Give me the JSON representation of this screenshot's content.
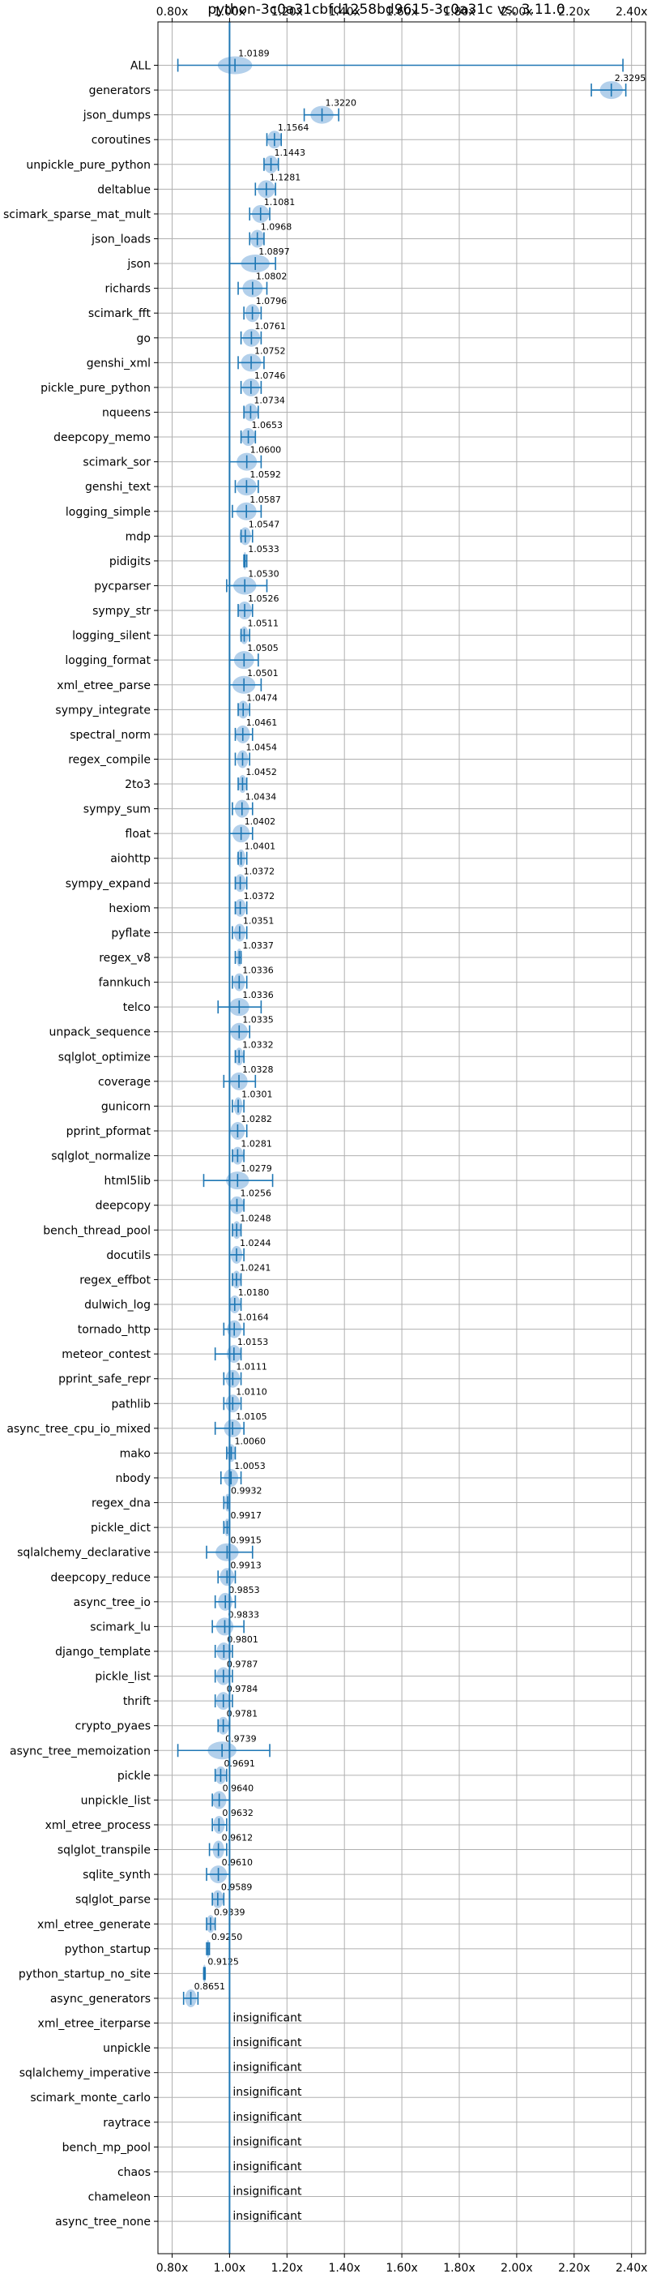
{
  "chart_data": {
    "type": "violin",
    "title": "python-3c0a31cbfd1258bd9615-3c0a31c vs. 3.11.0",
    "xlim": [
      0.75,
      2.42
    ],
    "x_ticks": [
      {
        "value": 0.8,
        "label": "0.80x"
      },
      {
        "value": 1.0,
        "label": "1.00x"
      },
      {
        "value": 1.2,
        "label": "1.20x"
      },
      {
        "value": 1.4,
        "label": "1.40x"
      },
      {
        "value": 1.6,
        "label": "1.60x"
      },
      {
        "value": 1.8,
        "label": "1.80x"
      },
      {
        "value": 2.0,
        "label": "2.00x"
      },
      {
        "value": 2.2,
        "label": "2.20x"
      },
      {
        "value": 2.4,
        "label": "2.40x"
      }
    ],
    "reference_line": 1.0,
    "grid": true,
    "colors": {
      "accent": "#1f77b4",
      "violin": "#a6c8e8",
      "grid": "#b0b0b0"
    },
    "insignificant_text": "insignificant",
    "benchmarks": [
      {
        "name": "ALL",
        "value": 1.0189,
        "label": "1.0189",
        "lo": 0.82,
        "hi": 2.37,
        "spread": 0.06
      },
      {
        "name": "generators",
        "value": 2.3295,
        "label": "2.3295",
        "lo": 2.26,
        "hi": 2.38,
        "spread": 0.04
      },
      {
        "name": "json_dumps",
        "value": 1.322,
        "label": "1.3220",
        "lo": 1.26,
        "hi": 1.38,
        "spread": 0.04
      },
      {
        "name": "coroutines",
        "value": 1.1564,
        "label": "1.1564",
        "lo": 1.13,
        "hi": 1.18,
        "spread": 0.025
      },
      {
        "name": "unpickle_pure_python",
        "value": 1.1443,
        "label": "1.1443",
        "lo": 1.12,
        "hi": 1.17,
        "spread": 0.025
      },
      {
        "name": "deltablue",
        "value": 1.1281,
        "label": "1.1281",
        "lo": 1.09,
        "hi": 1.16,
        "spread": 0.03
      },
      {
        "name": "scimark_sparse_mat_mult",
        "value": 1.1081,
        "label": "1.1081",
        "lo": 1.07,
        "hi": 1.14,
        "spread": 0.03
      },
      {
        "name": "json_loads",
        "value": 1.0968,
        "label": "1.0968",
        "lo": 1.07,
        "hi": 1.12,
        "spread": 0.025
      },
      {
        "name": "json",
        "value": 1.0897,
        "label": "1.0897",
        "lo": 1.0,
        "hi": 1.16,
        "spread": 0.05
      },
      {
        "name": "richards",
        "value": 1.0802,
        "label": "1.0802",
        "lo": 1.03,
        "hi": 1.13,
        "spread": 0.035
      },
      {
        "name": "scimark_fft",
        "value": 1.0796,
        "label": "1.0796",
        "lo": 1.05,
        "hi": 1.11,
        "spread": 0.025
      },
      {
        "name": "go",
        "value": 1.0761,
        "label": "1.0761",
        "lo": 1.04,
        "hi": 1.11,
        "spread": 0.03
      },
      {
        "name": "genshi_xml",
        "value": 1.0752,
        "label": "1.0752",
        "lo": 1.03,
        "hi": 1.12,
        "spread": 0.035
      },
      {
        "name": "pickle_pure_python",
        "value": 1.0746,
        "label": "1.0746",
        "lo": 1.04,
        "hi": 1.11,
        "spread": 0.03
      },
      {
        "name": "nqueens",
        "value": 1.0734,
        "label": "1.0734",
        "lo": 1.05,
        "hi": 1.1,
        "spread": 0.025
      },
      {
        "name": "deepcopy_memo",
        "value": 1.0653,
        "label": "1.0653",
        "lo": 1.04,
        "hi": 1.09,
        "spread": 0.025
      },
      {
        "name": "scimark_sor",
        "value": 1.06,
        "label": "1.0600",
        "lo": 1.0,
        "hi": 1.11,
        "spread": 0.035
      },
      {
        "name": "genshi_text",
        "value": 1.0592,
        "label": "1.0592",
        "lo": 1.02,
        "hi": 1.1,
        "spread": 0.035
      },
      {
        "name": "logging_simple",
        "value": 1.0587,
        "label": "1.0587",
        "lo": 1.01,
        "hi": 1.11,
        "spread": 0.035
      },
      {
        "name": "mdp",
        "value": 1.0547,
        "label": "1.0547",
        "lo": 1.04,
        "hi": 1.08,
        "spread": 0.02
      },
      {
        "name": "pidigits",
        "value": 1.0533,
        "label": "1.0533",
        "lo": 1.05,
        "hi": 1.06,
        "spread": 0.006
      },
      {
        "name": "pycparser",
        "value": 1.053,
        "label": "1.0530",
        "lo": 0.99,
        "hi": 1.13,
        "spread": 0.04
      },
      {
        "name": "sympy_str",
        "value": 1.0526,
        "label": "1.0526",
        "lo": 1.03,
        "hi": 1.08,
        "spread": 0.025
      },
      {
        "name": "logging_silent",
        "value": 1.0511,
        "label": "1.0511",
        "lo": 1.04,
        "hi": 1.07,
        "spread": 0.015
      },
      {
        "name": "logging_format",
        "value": 1.0505,
        "label": "1.0505",
        "lo": 1.0,
        "hi": 1.1,
        "spread": 0.035
      },
      {
        "name": "xml_etree_parse",
        "value": 1.0501,
        "label": "1.0501",
        "lo": 1.0,
        "hi": 1.11,
        "spread": 0.04
      },
      {
        "name": "sympy_integrate",
        "value": 1.0474,
        "label": "1.0474",
        "lo": 1.03,
        "hi": 1.07,
        "spread": 0.02
      },
      {
        "name": "spectral_norm",
        "value": 1.0461,
        "label": "1.0461",
        "lo": 1.02,
        "hi": 1.08,
        "spread": 0.025
      },
      {
        "name": "regex_compile",
        "value": 1.0454,
        "label": "1.0454",
        "lo": 1.02,
        "hi": 1.07,
        "spread": 0.02
      },
      {
        "name": "2to3",
        "value": 1.0452,
        "label": "1.0452",
        "lo": 1.03,
        "hi": 1.06,
        "spread": 0.015
      },
      {
        "name": "sympy_sum",
        "value": 1.0434,
        "label": "1.0434",
        "lo": 1.01,
        "hi": 1.08,
        "spread": 0.025
      },
      {
        "name": "float",
        "value": 1.0402,
        "label": "1.0402",
        "lo": 1.0,
        "hi": 1.08,
        "spread": 0.03
      },
      {
        "name": "aiohttp",
        "value": 1.0401,
        "label": "1.0401",
        "lo": 1.03,
        "hi": 1.06,
        "spread": 0.015
      },
      {
        "name": "sympy_expand",
        "value": 1.0372,
        "label": "1.0372",
        "lo": 1.02,
        "hi": 1.06,
        "spread": 0.02
      },
      {
        "name": "hexiom",
        "value": 1.0372,
        "label": "1.0372",
        "lo": 1.02,
        "hi": 1.06,
        "spread": 0.02
      },
      {
        "name": "pyflate",
        "value": 1.0351,
        "label": "1.0351",
        "lo": 1.01,
        "hi": 1.06,
        "spread": 0.02
      },
      {
        "name": "regex_v8",
        "value": 1.0337,
        "label": "1.0337",
        "lo": 1.02,
        "hi": 1.04,
        "spread": 0.01
      },
      {
        "name": "fannkuch",
        "value": 1.0336,
        "label": "1.0336",
        "lo": 1.01,
        "hi": 1.06,
        "spread": 0.02
      },
      {
        "name": "telco",
        "value": 1.0336,
        "label": "1.0336",
        "lo": 0.96,
        "hi": 1.11,
        "spread": 0.035
      },
      {
        "name": "unpack_sequence",
        "value": 1.0335,
        "label": "1.0335",
        "lo": 1.0,
        "hi": 1.07,
        "spread": 0.03
      },
      {
        "name": "sqlglot_optimize",
        "value": 1.0332,
        "label": "1.0332",
        "lo": 1.02,
        "hi": 1.05,
        "spread": 0.015
      },
      {
        "name": "coverage",
        "value": 1.0328,
        "label": "1.0328",
        "lo": 0.98,
        "hi": 1.09,
        "spread": 0.03
      },
      {
        "name": "gunicorn",
        "value": 1.0301,
        "label": "1.0301",
        "lo": 1.01,
        "hi": 1.05,
        "spread": 0.015
      },
      {
        "name": "pprint_pformat",
        "value": 1.0282,
        "label": "1.0282",
        "lo": 1.0,
        "hi": 1.06,
        "spread": 0.025
      },
      {
        "name": "sqlglot_normalize",
        "value": 1.0281,
        "label": "1.0281",
        "lo": 1.01,
        "hi": 1.05,
        "spread": 0.02
      },
      {
        "name": "html5lib",
        "value": 1.0279,
        "label": "1.0279",
        "lo": 0.91,
        "hi": 1.15,
        "spread": 0.04
      },
      {
        "name": "deepcopy",
        "value": 1.0256,
        "label": "1.0256",
        "lo": 1.0,
        "hi": 1.05,
        "spread": 0.025
      },
      {
        "name": "bench_thread_pool",
        "value": 1.0248,
        "label": "1.0248",
        "lo": 1.01,
        "hi": 1.04,
        "spread": 0.015
      },
      {
        "name": "docutils",
        "value": 1.0244,
        "label": "1.0244",
        "lo": 1.0,
        "hi": 1.05,
        "spread": 0.02
      },
      {
        "name": "regex_effbot",
        "value": 1.0241,
        "label": "1.0241",
        "lo": 1.01,
        "hi": 1.04,
        "spread": 0.015
      },
      {
        "name": "dulwich_log",
        "value": 1.018,
        "label": "1.0180",
        "lo": 1.0,
        "hi": 1.04,
        "spread": 0.02
      },
      {
        "name": "tornado_http",
        "value": 1.0164,
        "label": "1.0164",
        "lo": 0.98,
        "hi": 1.05,
        "spread": 0.025
      },
      {
        "name": "meteor_contest",
        "value": 1.0153,
        "label": "1.0153",
        "lo": 0.95,
        "hi": 1.04,
        "spread": 0.025
      },
      {
        "name": "pprint_safe_repr",
        "value": 1.0111,
        "label": "1.0111",
        "lo": 0.98,
        "hi": 1.04,
        "spread": 0.025
      },
      {
        "name": "pathlib",
        "value": 1.011,
        "label": "1.0110",
        "lo": 0.98,
        "hi": 1.04,
        "spread": 0.025
      },
      {
        "name": "async_tree_cpu_io_mixed",
        "value": 1.0105,
        "label": "1.0105",
        "lo": 0.95,
        "hi": 1.05,
        "spread": 0.03
      },
      {
        "name": "mako",
        "value": 1.006,
        "label": "1.0060",
        "lo": 0.99,
        "hi": 1.02,
        "spread": 0.015
      },
      {
        "name": "nbody",
        "value": 1.0053,
        "label": "1.0053",
        "lo": 0.97,
        "hi": 1.04,
        "spread": 0.025
      },
      {
        "name": "regex_dna",
        "value": 0.9932,
        "label": "0.9932",
        "lo": 0.98,
        "hi": 1.0,
        "spread": 0.01
      },
      {
        "name": "pickle_dict",
        "value": 0.9917,
        "label": "0.9917",
        "lo": 0.98,
        "hi": 1.0,
        "spread": 0.01
      },
      {
        "name": "sqlalchemy_declarative",
        "value": 0.9915,
        "label": "0.9915",
        "lo": 0.92,
        "hi": 1.08,
        "spread": 0.04
      },
      {
        "name": "deepcopy_reduce",
        "value": 0.9913,
        "label": "0.9913",
        "lo": 0.96,
        "hi": 1.02,
        "spread": 0.025
      },
      {
        "name": "async_tree_io",
        "value": 0.9853,
        "label": "0.9853",
        "lo": 0.95,
        "hi": 1.02,
        "spread": 0.025
      },
      {
        "name": "scimark_lu",
        "value": 0.9833,
        "label": "0.9833",
        "lo": 0.94,
        "hi": 1.05,
        "spread": 0.03
      },
      {
        "name": "django_template",
        "value": 0.9801,
        "label": "0.9801",
        "lo": 0.95,
        "hi": 1.01,
        "spread": 0.025
      },
      {
        "name": "pickle_list",
        "value": 0.9787,
        "label": "0.9787",
        "lo": 0.95,
        "hi": 1.01,
        "spread": 0.025
      },
      {
        "name": "thrift",
        "value": 0.9784,
        "label": "0.9784",
        "lo": 0.95,
        "hi": 1.01,
        "spread": 0.025
      },
      {
        "name": "crypto_pyaes",
        "value": 0.9781,
        "label": "0.9781",
        "lo": 0.96,
        "hi": 1.0,
        "spread": 0.02
      },
      {
        "name": "async_tree_memoization",
        "value": 0.9739,
        "label": "0.9739",
        "lo": 0.82,
        "hi": 1.14,
        "spread": 0.05
      },
      {
        "name": "pickle",
        "value": 0.9691,
        "label": "0.9691",
        "lo": 0.95,
        "hi": 0.99,
        "spread": 0.02
      },
      {
        "name": "unpickle_list",
        "value": 0.964,
        "label": "0.9640",
        "lo": 0.94,
        "hi": 1.0,
        "spread": 0.025
      },
      {
        "name": "xml_etree_process",
        "value": 0.9632,
        "label": "0.9632",
        "lo": 0.94,
        "hi": 0.99,
        "spread": 0.02
      },
      {
        "name": "sqlglot_transpile",
        "value": 0.9612,
        "label": "0.9612",
        "lo": 0.93,
        "hi": 0.99,
        "spread": 0.02
      },
      {
        "name": "sqlite_synth",
        "value": 0.961,
        "label": "0.9610",
        "lo": 0.92,
        "hi": 1.0,
        "spread": 0.03
      },
      {
        "name": "sqlglot_parse",
        "value": 0.9589,
        "label": "0.9589",
        "lo": 0.94,
        "hi": 0.98,
        "spread": 0.02
      },
      {
        "name": "xml_etree_generate",
        "value": 0.9339,
        "label": "0.9339",
        "lo": 0.92,
        "hi": 0.95,
        "spread": 0.015
      },
      {
        "name": "python_startup",
        "value": 0.925,
        "label": "0.9250",
        "lo": 0.92,
        "hi": 0.93,
        "spread": 0.005
      },
      {
        "name": "python_startup_no_site",
        "value": 0.9125,
        "label": "0.9125",
        "lo": 0.91,
        "hi": 0.915,
        "spread": 0.004
      },
      {
        "name": "async_generators",
        "value": 0.8651,
        "label": "0.8651",
        "lo": 0.84,
        "hi": 0.89,
        "spread": 0.02
      },
      {
        "name": "xml_etree_iterparse",
        "insignificant": true
      },
      {
        "name": "unpickle",
        "insignificant": true
      },
      {
        "name": "sqlalchemy_imperative",
        "insignificant": true
      },
      {
        "name": "scimark_monte_carlo",
        "insignificant": true
      },
      {
        "name": "raytrace",
        "insignificant": true
      },
      {
        "name": "bench_mp_pool",
        "insignificant": true
      },
      {
        "name": "chaos",
        "insignificant": true
      },
      {
        "name": "chameleon",
        "insignificant": true
      },
      {
        "name": "async_tree_none",
        "insignificant": true
      }
    ]
  }
}
